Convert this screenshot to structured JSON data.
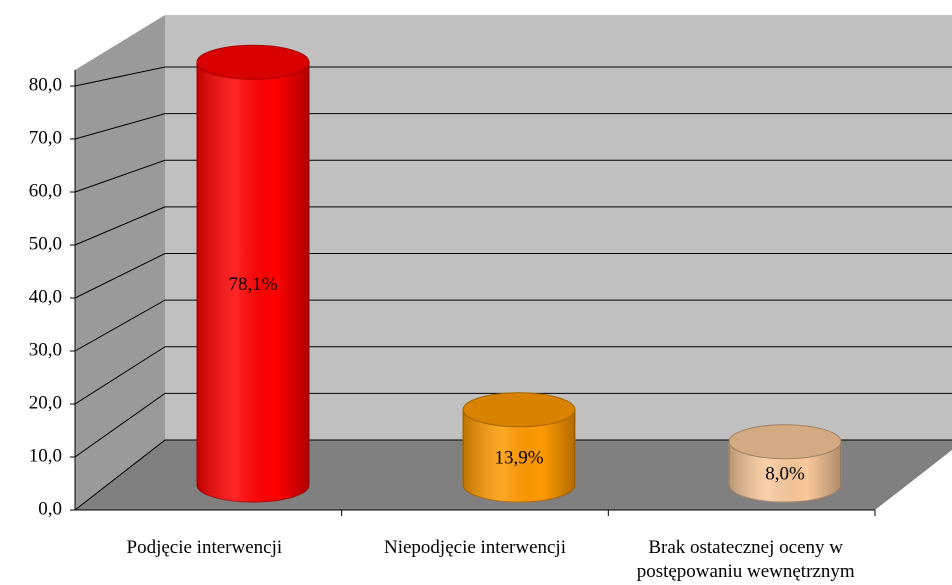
{
  "chart_data": {
    "type": "cylinder",
    "categories": [
      "Podjęcie interwencji",
      "Niepodjęcie interwencji",
      "Brak ostatecznej oceny w postępowaniu wewnętrznym"
    ],
    "values": [
      78.1,
      13.9,
      8.0
    ],
    "value_labels": [
      "78,1%",
      "13,9%",
      "8,0%"
    ],
    "colors": [
      "#ff0000",
      "#ff9900",
      "#f9c89a"
    ],
    "ylim": [
      0,
      80
    ],
    "yticks": [
      {
        "value": 0,
        "label": "0,0"
      },
      {
        "value": 10,
        "label": "10,0"
      },
      {
        "value": 20,
        "label": "20,0"
      },
      {
        "value": 30,
        "label": "30,0"
      },
      {
        "value": 40,
        "label": "40,0"
      },
      {
        "value": 50,
        "label": "50,0"
      },
      {
        "value": 60,
        "label": "60,0"
      },
      {
        "value": 70,
        "label": "70,0"
      },
      {
        "value": 80,
        "label": "80,0"
      }
    ],
    "grid": true
  }
}
